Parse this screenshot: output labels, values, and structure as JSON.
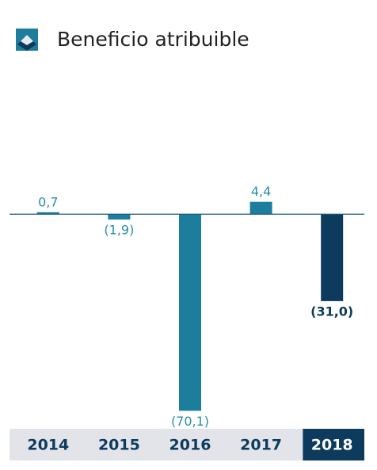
{
  "chart_data": {
    "type": "bar",
    "title": "Beneficio atribuible",
    "categories": [
      "2014",
      "2015",
      "2016",
      "2017",
      "2018"
    ],
    "values": [
      0.7,
      -1.9,
      -70.1,
      4.4,
      -31.0
    ],
    "value_labels": [
      "0,7",
      "(1,9)",
      "(70,1)",
      "4,4",
      "(31,0)"
    ],
    "color": "#1c7d9c",
    "colors": [
      "#1c7d9c",
      "#1c7d9c",
      "#1c7d9c",
      "#1c7d9c",
      "#0d3b5e"
    ],
    "ylim": [
      -72,
      6
    ]
  }
}
